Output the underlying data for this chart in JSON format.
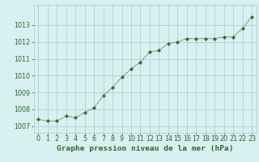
{
  "x": [
    0,
    1,
    2,
    3,
    4,
    5,
    6,
    7,
    8,
    9,
    10,
    11,
    12,
    13,
    14,
    15,
    16,
    17,
    18,
    19,
    20,
    21,
    22,
    23
  ],
  "y": [
    1007.4,
    1007.3,
    1007.3,
    1007.6,
    1007.5,
    1007.8,
    1008.1,
    1008.8,
    1009.3,
    1009.9,
    1010.4,
    1010.8,
    1011.4,
    1011.5,
    1011.9,
    1012.0,
    1012.2,
    1012.2,
    1012.2,
    1012.2,
    1012.3,
    1012.3,
    1012.8,
    1013.5
  ],
  "line_color": "#2d6a2d",
  "marker_color": "#2d6a2d",
  "bg_color": "#d8f0f0",
  "grid_color": "#aad4d4",
  "title": "Graphe pression niveau de la mer (hPa)",
  "xlabel_ticks": [
    "0",
    "1",
    "2",
    "3",
    "4",
    "5",
    "6",
    "7",
    "8",
    "9",
    "10",
    "11",
    "12",
    "13",
    "14",
    "15",
    "16",
    "17",
    "18",
    "19",
    "20",
    "21",
    "22",
    "23"
  ],
  "yticks": [
    1007,
    1008,
    1009,
    1010,
    1011,
    1012,
    1013
  ],
  "ylim": [
    1006.6,
    1014.2
  ],
  "xlim": [
    -0.5,
    23.5
  ],
  "title_color": "#2d6a2d",
  "tick_color": "#2d6a2d",
  "title_fontsize": 6.8,
  "tick_fontsize": 5.8
}
